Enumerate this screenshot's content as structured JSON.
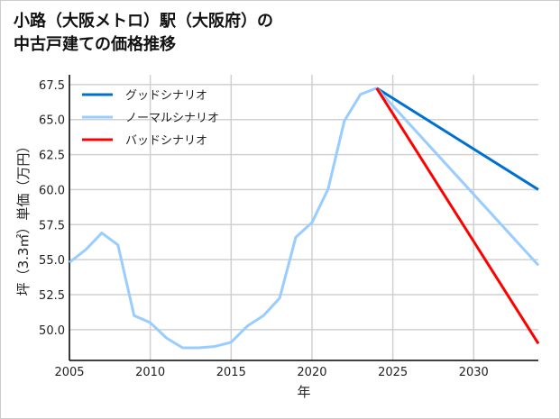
{
  "chart_data": {
    "type": "line",
    "title_lines": [
      "小路（大阪メトロ）駅（大阪府）の",
      "中古戸建ての価格推移"
    ],
    "xlabel": "年",
    "ylabel": "坪（3.3㎡）単価（万円）",
    "xlim": [
      2005,
      2034
    ],
    "ylim": [
      47.8,
      68.2
    ],
    "xticks": [
      "2005",
      "2010",
      "2015",
      "2020",
      "2025",
      "2030"
    ],
    "yticks": [
      "50.0",
      "52.5",
      "55.0",
      "57.5",
      "60.0",
      "62.5",
      "65.0",
      "67.5"
    ],
    "grid": true,
    "legend_position": "top-left",
    "history": {
      "x": [
        2005,
        2006,
        2007,
        2008,
        2009,
        2010,
        2011,
        2012,
        2013,
        2014,
        2015,
        2016,
        2017,
        2018,
        2019,
        2020,
        2021,
        2022,
        2023,
        2024
      ],
      "y": [
        54.8,
        55.7,
        56.9,
        56.05,
        51.0,
        50.5,
        49.4,
        48.7,
        48.7,
        48.8,
        49.1,
        50.25,
        51.0,
        52.25,
        56.6,
        57.65,
        60.05,
        64.9,
        66.8,
        67.25
      ]
    },
    "series": [
      {
        "name": "グッドシナリオ",
        "color": "#0070d0",
        "x": [
          2024,
          2034
        ],
        "y": [
          67.25,
          60.0
        ]
      },
      {
        "name": "ノーマルシナリオ",
        "color": "#99ccff",
        "x": [
          2024,
          2034
        ],
        "y": [
          67.25,
          54.6
        ]
      },
      {
        "name": "バッドシナリオ",
        "color": "#ff0000",
        "x": [
          2024,
          2034
        ],
        "y": [
          67.25,
          49.0
        ]
      }
    ]
  }
}
